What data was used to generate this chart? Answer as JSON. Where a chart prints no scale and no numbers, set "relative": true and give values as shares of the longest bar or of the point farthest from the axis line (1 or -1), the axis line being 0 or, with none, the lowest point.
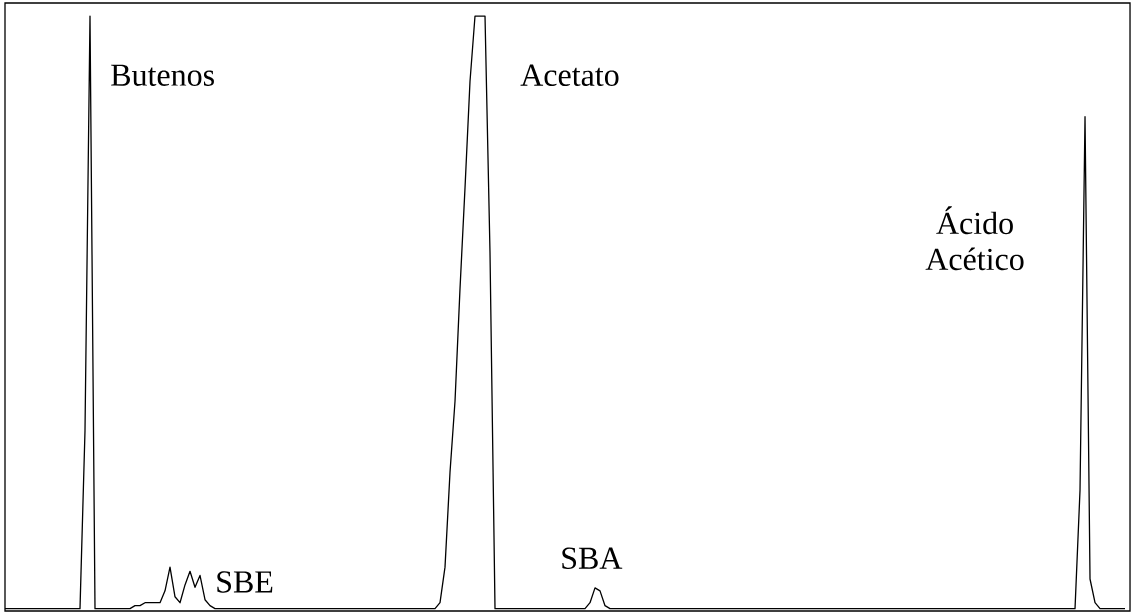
{
  "chart_data": {
    "type": "line",
    "relative": true,
    "categories": [
      null,
      null,
      null,
      null,
      null,
      null,
      null,
      null,
      null,
      null,
      null,
      null,
      null,
      null,
      null,
      null,
      null,
      null,
      null,
      null,
      null,
      null,
      null,
      null,
      null,
      null,
      null,
      null,
      null,
      null,
      null,
      null,
      null,
      null,
      null,
      null,
      null,
      null,
      null,
      null,
      null,
      null,
      null,
      null,
      null,
      null,
      null,
      null,
      null,
      null,
      null,
      null,
      null,
      null,
      null,
      null,
      null,
      null,
      null,
      null,
      null,
      null,
      null,
      null,
      null,
      null,
      null,
      null,
      null,
      null,
      null,
      null,
      null,
      null,
      null,
      null,
      null,
      null,
      null,
      null,
      null,
      null,
      null,
      null,
      null,
      null,
      null,
      null,
      null,
      null,
      null,
      null,
      null,
      null,
      null,
      null,
      null,
      null,
      null,
      null,
      null,
      null,
      null,
      null,
      null,
      null,
      null,
      null,
      null,
      null,
      null,
      null,
      null,
      null,
      null,
      null,
      null,
      null,
      null,
      null,
      null,
      null,
      null,
      null,
      null,
      null,
      null,
      null,
      null,
      null,
      null,
      null,
      null,
      null,
      null,
      null,
      null,
      null,
      null,
      null,
      null,
      null,
      null,
      null,
      null,
      null,
      null,
      null,
      null,
      null,
      null,
      null,
      null,
      null,
      null,
      null,
      null,
      null,
      null,
      null,
      null,
      null,
      null,
      null,
      null,
      null,
      null,
      null,
      null,
      null,
      null,
      null,
      null,
      null,
      null,
      null,
      null,
      null,
      null,
      null,
      null,
      null,
      null,
      null,
      null,
      null,
      null,
      null,
      null,
      null,
      null,
      null,
      null,
      null,
      null,
      null,
      null,
      null,
      null,
      null,
      null,
      null,
      null,
      null,
      null,
      null,
      null,
      null,
      null,
      null,
      null,
      null,
      null,
      null,
      null,
      null,
      null,
      null,
      null,
      null,
      null,
      null,
      null,
      null,
      null
    ],
    "series": [
      {
        "color": "#000000",
        "values": [
          0,
          0,
          0,
          0,
          0,
          0,
          0,
          0,
          0,
          0,
          0,
          0,
          0,
          0,
          0,
          0,
          0.3,
          1,
          0,
          0,
          0,
          0,
          0,
          0,
          0,
          0,
          0.005,
          0.005,
          0.01,
          0.01,
          0.01,
          0.01,
          0.03,
          0.07,
          0.02,
          0.01,
          0.04,
          0.063,
          0.036,
          0.056,
          0.015,
          0.005,
          0,
          0,
          0,
          0,
          0,
          0,
          0,
          0,
          0,
          0,
          0,
          0,
          0,
          0,
          0,
          0,
          0,
          0,
          0,
          0,
          0,
          0,
          0,
          0,
          0,
          0,
          0,
          0,
          0,
          0,
          0,
          0,
          0,
          0,
          0,
          0,
          0,
          0,
          0,
          0,
          0,
          0,
          0,
          0,
          0,
          0.01,
          0.07,
          0.23,
          0.35,
          0.54,
          0.71,
          0.89,
          1,
          1,
          1,
          0.6,
          0,
          0,
          0,
          0,
          0,
          0,
          0,
          0,
          0,
          0,
          0,
          0,
          0,
          0,
          0,
          0,
          0,
          0,
          0,
          0.01,
          0.035,
          0.03,
          0.005,
          0,
          0,
          0,
          0,
          0,
          0,
          0,
          0,
          0,
          0,
          0,
          0,
          0,
          0,
          0,
          0,
          0,
          0,
          0,
          0,
          0,
          0,
          0,
          0,
          0,
          0,
          0,
          0,
          0,
          0,
          0,
          0,
          0,
          0,
          0,
          0,
          0,
          0,
          0,
          0,
          0,
          0,
          0,
          0,
          0,
          0,
          0,
          0,
          0,
          0,
          0,
          0,
          0,
          0,
          0,
          0,
          0,
          0,
          0,
          0,
          0,
          0,
          0,
          0,
          0,
          0,
          0,
          0,
          0,
          0,
          0,
          0,
          0,
          0,
          0,
          0,
          0,
          0,
          0,
          0,
          0,
          0,
          0,
          0,
          0,
          0,
          0,
          0,
          0,
          0,
          0,
          0,
          0,
          0,
          0.2,
          0.83,
          0.05,
          0.01,
          0,
          0,
          0,
          0,
          0,
          0
        ]
      }
    ],
    "annotations": [
      "Butenos",
      "Acetato",
      "Ácido Acético",
      "SBE",
      "SBA"
    ]
  }
}
